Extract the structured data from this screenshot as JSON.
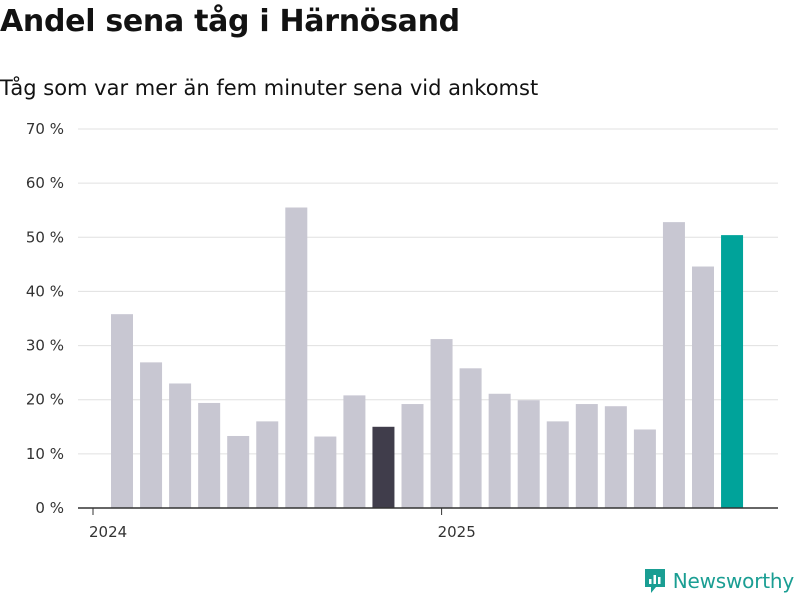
{
  "header": {
    "title": "Andel sena tåg i Härnösand",
    "subtitle": "Tåg som var mer än fem minuter sena vid ankomst"
  },
  "brand": {
    "name": "Newsworthy",
    "color": "#1a9e93",
    "icon": "newsworthy-logo-icon"
  },
  "colors": {
    "bar": "#c8c7d2",
    "highlight_dark": "#403d4b",
    "highlight_accent": "#00a39a",
    "grid": "#e0e0e0",
    "axis": "#333333"
  },
  "chart_data": {
    "type": "bar",
    "x": [
      "2024-01",
      "2024-02",
      "2024-03",
      "2024-04",
      "2024-05",
      "2024-06",
      "2024-07",
      "2024-08",
      "2024-09",
      "2024-10",
      "2024-11",
      "2024-12",
      "2025-01",
      "2025-02",
      "2025-03",
      "2025-04",
      "2025-05",
      "2025-06",
      "2025-07",
      "2025-08",
      "2025-09",
      "2025-10"
    ],
    "values": [
      35.8,
      26.9,
      23.0,
      19.4,
      13.3,
      16.0,
      55.5,
      13.2,
      20.8,
      15.0,
      19.2,
      31.2,
      25.8,
      21.1,
      19.9,
      16.0,
      19.2,
      18.8,
      14.5,
      52.8,
      44.6,
      50.4
    ],
    "highlight": {
      "2024-10": "dark",
      "2025-10": "accent"
    },
    "ylim": [
      0,
      70
    ],
    "yticks": [
      0,
      10,
      20,
      30,
      40,
      50,
      60,
      70
    ],
    "ytick_labels": [
      "0 %",
      "10 %",
      "20 %",
      "30 %",
      "40 %",
      "50 %",
      "60 %",
      "70 %"
    ],
    "xtick_labels": [
      {
        "at": "2024-01",
        "label": "2024"
      },
      {
        "at": "2025-01",
        "label": "2025"
      }
    ],
    "grid": true
  }
}
